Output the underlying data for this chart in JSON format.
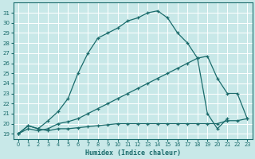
{
  "xlabel": "Humidex (Indice chaleur)",
  "bg_color": "#c8e8e8",
  "line_color": "#1a6b6b",
  "grid_color": "#ffffff",
  "xlim": [
    -0.5,
    23.5
  ],
  "ylim": [
    18.5,
    32.0
  ],
  "xticks": [
    0,
    1,
    2,
    3,
    4,
    5,
    6,
    7,
    8,
    9,
    10,
    11,
    12,
    13,
    14,
    15,
    16,
    17,
    18,
    19,
    20,
    21,
    22,
    23
  ],
  "yticks": [
    19,
    20,
    21,
    22,
    23,
    24,
    25,
    26,
    27,
    28,
    29,
    30,
    31
  ],
  "line3_x": [
    0,
    1,
    2,
    3,
    4,
    5,
    6,
    7,
    8,
    9,
    10,
    11,
    12,
    13,
    14,
    15,
    16,
    17,
    18,
    19,
    20,
    21
  ],
  "line3_y": [
    19,
    19.8,
    19.5,
    20.3,
    21.2,
    22.5,
    25.0,
    27.0,
    28.5,
    29.0,
    29.5,
    30.2,
    30.5,
    31.0,
    31.2,
    30.5,
    29.0,
    28.0,
    26.5,
    21.0,
    19.5,
    20.5
  ],
  "line2_x": [
    0,
    1,
    2,
    3,
    4,
    5,
    6,
    7,
    8,
    9,
    10,
    11,
    12,
    13,
    14,
    15,
    16,
    17,
    18,
    19,
    20,
    21,
    22,
    23
  ],
  "line2_y": [
    19,
    19.5,
    19.3,
    19.5,
    20.0,
    20.2,
    20.5,
    21.0,
    21.5,
    22.0,
    22.5,
    23.0,
    23.5,
    24.0,
    24.5,
    25.0,
    25.5,
    26.0,
    26.5,
    26.7,
    24.5,
    23.0,
    23.0,
    20.5
  ],
  "line1_x": [
    0,
    1,
    2,
    3,
    4,
    5,
    6,
    7,
    8,
    9,
    10,
    11,
    12,
    13,
    14,
    15,
    16,
    17,
    18,
    19,
    20,
    21,
    22,
    23
  ],
  "line1_y": [
    19,
    19.8,
    19.5,
    19.3,
    19.5,
    19.5,
    19.6,
    19.7,
    19.8,
    19.9,
    20.0,
    20.0,
    20.0,
    20.0,
    20.0,
    20.0,
    20.0,
    20.0,
    20.0,
    20.0,
    20.0,
    20.3,
    20.3,
    20.5
  ]
}
